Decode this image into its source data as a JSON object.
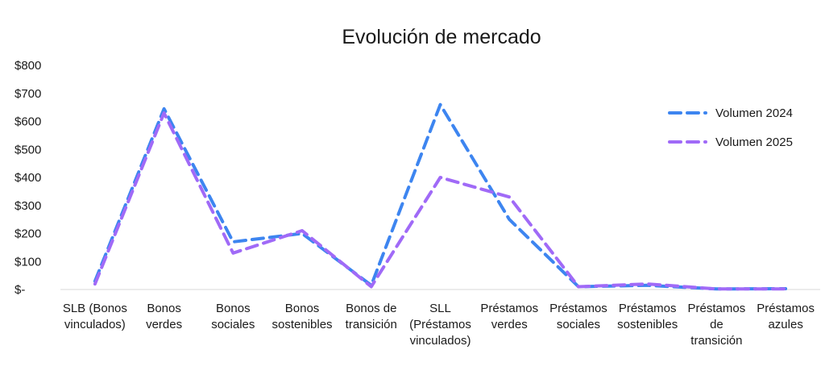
{
  "chart_data": {
    "type": "line",
    "title": "Evolución de mercado",
    "xlabel": "",
    "ylabel": "",
    "ylim": [
      0,
      800
    ],
    "yticks": [
      {
        "value": 0,
        "label": "$-"
      },
      {
        "value": 100,
        "label": "$100"
      },
      {
        "value": 200,
        "label": "$200"
      },
      {
        "value": 300,
        "label": "$300"
      },
      {
        "value": 400,
        "label": "$400"
      },
      {
        "value": 500,
        "label": "$500"
      },
      {
        "value": 600,
        "label": "$600"
      },
      {
        "value": 700,
        "label": "$700"
      },
      {
        "value": 800,
        "label": "$800"
      }
    ],
    "categories": [
      [
        "SLB (Bonos",
        "vinculados)"
      ],
      [
        "Bonos",
        "verdes"
      ],
      [
        "Bonos",
        "sociales"
      ],
      [
        "Bonos",
        "sostenibles"
      ],
      [
        "Bonos de",
        "transición"
      ],
      [
        "SLL",
        "(Préstamos",
        "vinculados)"
      ],
      [
        "Préstamos",
        "verdes"
      ],
      [
        "Préstamos",
        "sociales"
      ],
      [
        "Préstamos",
        "sostenibles"
      ],
      [
        "Préstamos",
        "de",
        "transición"
      ],
      [
        "Préstamos",
        "azules"
      ]
    ],
    "series": [
      {
        "name": "Volumen 2024",
        "color": "#3D85F0",
        "values": [
          30,
          645,
          170,
          200,
          15,
          660,
          250,
          10,
          15,
          2,
          3
        ]
      },
      {
        "name": "Volumen 2025",
        "color": "#A06AF7",
        "values": [
          20,
          630,
          130,
          210,
          10,
          400,
          330,
          10,
          20,
          2,
          2
        ]
      }
    ],
    "grid": false,
    "legend_position": "right"
  }
}
